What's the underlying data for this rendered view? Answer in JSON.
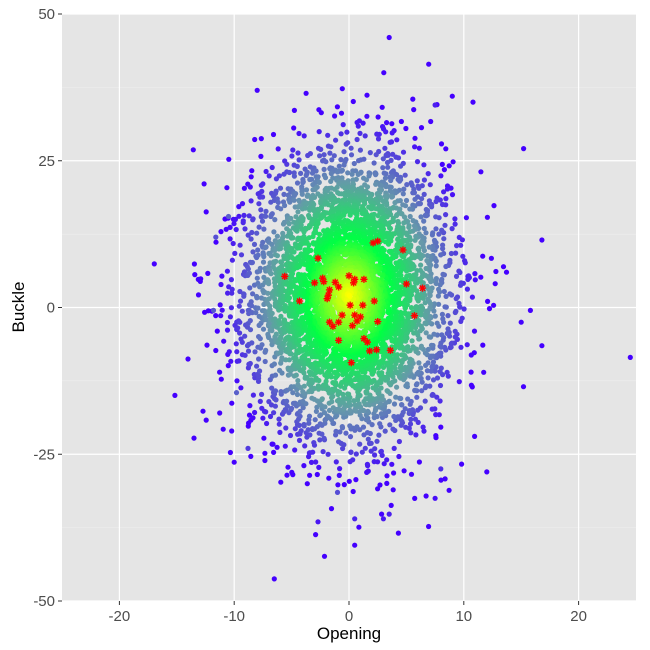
{
  "chart_data": {
    "type": "scatter",
    "title": "",
    "xlabel": "Opening",
    "ylabel": "Buckle",
    "xlim": [
      -25,
      25
    ],
    "ylim": [
      -50,
      50
    ],
    "x_ticks": [
      -20,
      -10,
      0,
      10,
      20
    ],
    "x_tick_labels": [
      "-20",
      "-10",
      "0",
      "10",
      "20"
    ],
    "y_ticks": [
      -50,
      -25,
      0,
      25,
      50
    ],
    "y_tick_labels": [
      "-50",
      "-25",
      "0",
      "25",
      "50"
    ],
    "grid": true,
    "legend": "none",
    "colors": {
      "panel_background": "#e5e5e5",
      "grid_major": "#ffffff",
      "grid_minor": "#f0f0f0",
      "density_high": "#ffff00",
      "density_mid": "#00ff44",
      "density_low": "#6699aa",
      "density_lowest": "#4400ff",
      "highlight": "#ff0000"
    },
    "series": [
      {
        "marker": "circle",
        "color_by": "density",
        "note_points": "dense bivariate normal cloud, center (0, 2), sd x approx 4, sd y approx 12",
        "outliers": [
          [
            3.5,
            46
          ],
          [
            -8,
            37
          ],
          [
            9,
            36
          ],
          [
            10.8,
            35
          ],
          [
            7.5,
            34.5
          ],
          [
            -11.6,
            12
          ],
          [
            -10.5,
            15.5
          ],
          [
            -11.8,
            -0.5
          ],
          [
            16.8,
            11.5
          ],
          [
            15.8,
            -0.5
          ],
          [
            15,
            -2.5
          ],
          [
            16.8,
            -6.5
          ],
          [
            24.5,
            -8.5
          ],
          [
            15.2,
            -13.5
          ],
          [
            -9.8,
            -14.5
          ],
          [
            -8.8,
            -24
          ],
          [
            12,
            -28
          ],
          [
            -2.7,
            -36.5
          ],
          [
            0.5,
            -40.5
          ],
          [
            0.5,
            -36
          ],
          [
            3,
            -36
          ],
          [
            3.5,
            -35.2
          ],
          [
            7.5,
            -32.5
          ],
          [
            8,
            -27.5
          ],
          [
            -1,
            -31.5
          ]
        ]
      },
      {
        "marker": "asterisk",
        "color": "#ff0000",
        "points": [
          [
            2.1,
            11.0
          ],
          [
            2.5,
            11.3
          ],
          [
            4.7,
            9.8
          ],
          [
            -2.7,
            8.4
          ],
          [
            -5.6,
            5.3
          ],
          [
            -2.3,
            5.0
          ],
          [
            -2.2,
            4.4
          ],
          [
            -1.2,
            4.3
          ],
          [
            -3.0,
            4.2
          ],
          [
            0.0,
            5.4
          ],
          [
            0.5,
            4.8
          ],
          [
            1.3,
            4.8
          ],
          [
            0.4,
            4.2
          ],
          [
            5.0,
            4.0
          ],
          [
            6.4,
            3.3
          ],
          [
            -1.7,
            3.0
          ],
          [
            -0.9,
            3.5
          ],
          [
            -1.8,
            2.1
          ],
          [
            -1.9,
            1.5
          ],
          [
            -4.3,
            1.1
          ],
          [
            2.2,
            1.1
          ],
          [
            0.1,
            0.4
          ],
          [
            1.2,
            0.4
          ],
          [
            -0.6,
            -1.3
          ],
          [
            0.5,
            -1.3
          ],
          [
            1.0,
            -1.6
          ],
          [
            5.7,
            -1.4
          ],
          [
            0.7,
            -2.3
          ],
          [
            -1.7,
            -2.5
          ],
          [
            -1.4,
            -3.2
          ],
          [
            -0.9,
            -2.5
          ],
          [
            0.3,
            -3.1
          ],
          [
            2.5,
            -2.4
          ],
          [
            1.3,
            -5.3
          ],
          [
            1.6,
            -5.9
          ],
          [
            -0.9,
            -5.6
          ],
          [
            2.4,
            -7.2
          ],
          [
            1.8,
            -7.4
          ],
          [
            3.6,
            -7.3
          ],
          [
            0.2,
            -9.4
          ]
        ]
      }
    ]
  }
}
